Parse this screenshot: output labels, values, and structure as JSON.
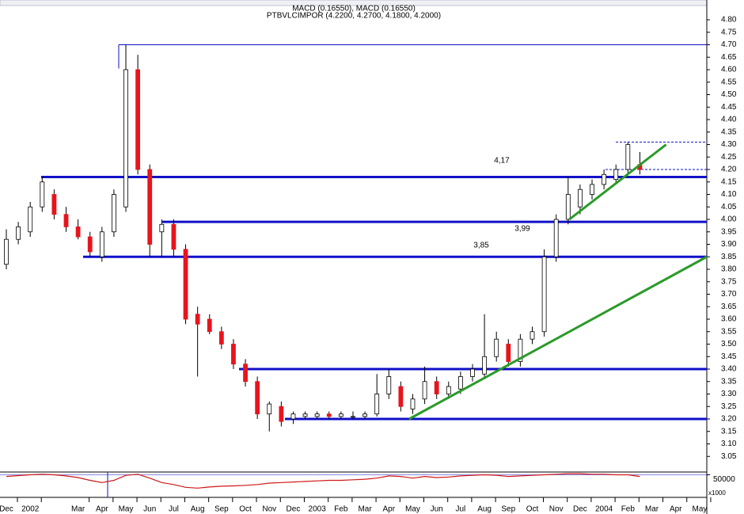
{
  "chart_data": {
    "type": "candlestick",
    "title": "MACD (0.16550), MACD (0.16550)",
    "subtitle": "PTBVLCIMPOR (4.2200, 4.2700, 4.1800, 4.2000)",
    "x": [
      0,
      0.5,
      1,
      1.5,
      2,
      2.5,
      3,
      3.5,
      4,
      4.5,
      5,
      5.5,
      6,
      6.5,
      7,
      7.5,
      8,
      8.5,
      9,
      9.5,
      10,
      10.5,
      11,
      11.5,
      12,
      12.5,
      13,
      13.5,
      14,
      14.5,
      15,
      15.5,
      16,
      16.5,
      17,
      17.5,
      18,
      18.5,
      19,
      19.5,
      20,
      20.5,
      21,
      21.5,
      22,
      22.5,
      23,
      23.5,
      24,
      24.5,
      25,
      25.5,
      26,
      26.5
    ],
    "open": [
      3.82,
      3.92,
      3.95,
      4.05,
      4.1,
      4.02,
      3.97,
      3.93,
      3.85,
      3.95,
      4.05,
      4.6,
      4.2,
      3.95,
      3.98,
      3.88,
      3.62,
      3.6,
      3.55,
      3.5,
      3.42,
      3.35,
      3.22,
      3.25,
      3.2,
      3.21,
      3.21,
      3.22,
      3.21,
      3.21,
      3.21,
      3.22,
      3.3,
      3.33,
      3.24,
      3.28,
      3.35,
      3.3,
      3.32,
      3.37,
      3.38,
      3.45,
      3.5,
      3.43,
      3.52,
      3.55,
      3.85,
      4.0,
      4.05,
      4.1,
      4.14,
      4.16,
      4.2,
      4.22
    ],
    "high": [
      3.96,
      3.99,
      4.07,
      4.17,
      4.12,
      4.05,
      4.0,
      3.95,
      3.97,
      4.12,
      4.7,
      4.66,
      4.22,
      4.0,
      4.0,
      3.9,
      3.65,
      3.62,
      3.57,
      3.52,
      3.44,
      3.37,
      3.27,
      3.27,
      3.23,
      3.23,
      3.23,
      3.23,
      3.23,
      3.23,
      3.23,
      3.38,
      3.4,
      3.35,
      3.3,
      3.41,
      3.37,
      3.35,
      3.39,
      3.42,
      3.62,
      3.55,
      3.52,
      3.54,
      3.57,
      3.88,
      4.02,
      4.17,
      4.14,
      4.16,
      4.2,
      4.22,
      4.31,
      4.27
    ],
    "low": [
      3.8,
      3.9,
      3.93,
      4.03,
      4.0,
      3.95,
      3.92,
      3.85,
      3.83,
      3.93,
      4.03,
      4.18,
      3.85,
      3.85,
      3.85,
      3.58,
      3.37,
      3.54,
      3.48,
      3.4,
      3.33,
      3.2,
      3.15,
      3.17,
      3.18,
      3.2,
      3.2,
      3.2,
      3.2,
      3.2,
      3.2,
      3.21,
      3.28,
      3.23,
      3.22,
      3.26,
      3.28,
      3.28,
      3.3,
      3.35,
      3.36,
      3.43,
      3.41,
      3.41,
      3.5,
      3.53,
      3.83,
      3.98,
      4.02,
      4.08,
      4.12,
      4.14,
      4.18,
      4.18
    ],
    "close": [
      3.92,
      3.97,
      4.05,
      4.15,
      4.02,
      3.97,
      3.93,
      3.87,
      3.95,
      4.1,
      4.6,
      4.2,
      3.9,
      3.98,
      3.88,
      3.6,
      3.58,
      3.55,
      3.5,
      3.42,
      3.35,
      3.22,
      3.26,
      3.19,
      3.22,
      3.22,
      3.22,
      3.21,
      3.22,
      3.21,
      3.22,
      3.3,
      3.37,
      3.25,
      3.28,
      3.35,
      3.3,
      3.33,
      3.37,
      3.4,
      3.45,
      3.52,
      3.43,
      3.52,
      3.55,
      3.85,
      4.0,
      4.1,
      4.12,
      4.14,
      4.18,
      4.2,
      4.3,
      4.2
    ],
    "up_color": "#ffffff",
    "down_color": "#e8141c",
    "ylim": [
      3.0,
      4.8
    ],
    "xlim": [
      -0.265,
      29.3
    ],
    "yticks": [
      3.05,
      {
        "value": 3.1,
        "label": "3.10"
      },
      3.15,
      {
        "value": 3.2,
        "label": "3.20"
      },
      3.25,
      {
        "value": 3.3,
        "label": "3.30"
      },
      3.35,
      {
        "value": 3.4,
        "label": "3.40"
      },
      3.45,
      {
        "value": 3.5,
        "label": "3.50"
      },
      3.55,
      {
        "value": 3.6,
        "label": "3.60"
      },
      3.65,
      {
        "value": 3.7,
        "label": "3.70"
      },
      3.75,
      {
        "value": 3.8,
        "label": "3.80"
      },
      3.85,
      {
        "value": 3.9,
        "label": "3.90"
      },
      3.95,
      {
        "value": 4,
        "label": "4.00"
      },
      4.05,
      {
        "value": 4.1,
        "label": "4.10"
      },
      4.15,
      {
        "value": 4.2,
        "label": "4.20"
      },
      4.25,
      {
        "value": 4.3,
        "label": "4.30"
      },
      4.35,
      {
        "value": 4.4,
        "label": "4.40"
      },
      4.45,
      {
        "value": 4.5,
        "label": "4.50"
      },
      4.55,
      {
        "value": 4.6,
        "label": "4.60"
      },
      4.65,
      {
        "value": 4.7,
        "label": "4.70"
      },
      4.75,
      {
        "value": 4.8,
        "label": "4.80"
      }
    ],
    "xticks": [
      {
        "value": 0,
        "label": "Dec"
      },
      {
        "value": 1,
        "label": "2002"
      },
      {
        "value": 3,
        "label": "Mar"
      },
      {
        "value": 4,
        "label": "Apr"
      },
      {
        "value": 5,
        "label": "May"
      },
      {
        "value": 6,
        "label": "Jun"
      },
      {
        "value": 7,
        "label": "Jul"
      },
      {
        "value": 8,
        "label": "Aug"
      },
      {
        "value": 9,
        "label": "Sep"
      },
      {
        "value": 10,
        "label": "Oct"
      },
      {
        "value": 11,
        "label": "Nov"
      },
      {
        "value": 12,
        "label": "Dec"
      },
      {
        "value": 13,
        "label": "2003"
      },
      {
        "value": 14,
        "label": "Feb"
      },
      {
        "value": 15,
        "label": "Mar"
      },
      {
        "value": 16,
        "label": "Apr"
      },
      {
        "value": 17,
        "label": "May"
      },
      {
        "value": 18,
        "label": "Jun"
      },
      {
        "value": 19,
        "label": "Jul"
      },
      {
        "value": 20,
        "label": "Aug"
      },
      {
        "value": 21,
        "label": "Sep"
      },
      {
        "value": 22,
        "label": "Oct"
      },
      {
        "value": 23,
        "label": "Nov"
      },
      {
        "value": 24,
        "label": "Dec"
      },
      {
        "value": 25,
        "label": "2004"
      },
      {
        "value": 26,
        "label": "Feb"
      },
      {
        "value": 27,
        "label": "Mar"
      },
      {
        "value": 28,
        "label": "Apr"
      },
      {
        "value": 29,
        "label": "May"
      }
    ],
    "levels": [
      {
        "value": 4.7
      },
      {
        "value": 4.17,
        "label": "4,17"
      },
      {
        "value": 3.99,
        "label": "3,99"
      },
      {
        "value": 3.85,
        "label": "3,85"
      },
      {
        "value": 3.4
      },
      {
        "value": 3.2
      }
    ],
    "level_color": "#1010c8",
    "dashed_levels": [
      4.31,
      4.2
    ],
    "trendlines": [
      {
        "points": [
          [
            16.85,
            3.2
          ],
          [
            29.3,
            3.85
          ]
        ]
      },
      {
        "points": [
          [
            23.55,
            4.0
          ],
          [
            27.6,
            4.3
          ]
        ]
      }
    ],
    "trend_color": "#2a9a28",
    "macd": {
      "ylim": [
        -20000,
        60000
      ],
      "yticks": [
        50000
      ],
      "unit_label": "x1000",
      "color": "#d01818",
      "values": [
        44000,
        47000,
        50000,
        52000,
        50000,
        46000,
        40000,
        30000,
        22000,
        30000,
        48000,
        52000,
        38000,
        22000,
        15000,
        5000,
        2000,
        6000,
        9000,
        10000,
        12000,
        15000,
        20000,
        22000,
        24000,
        26000,
        28000,
        30000,
        30000,
        32000,
        34000,
        38000,
        46000,
        44000,
        38000,
        44000,
        40000,
        42000,
        46000,
        48000,
        50000,
        48000,
        44000,
        46000,
        48000,
        50000,
        52000,
        54000,
        54000,
        52000,
        52000,
        50000,
        50000,
        44000
      ]
    }
  }
}
